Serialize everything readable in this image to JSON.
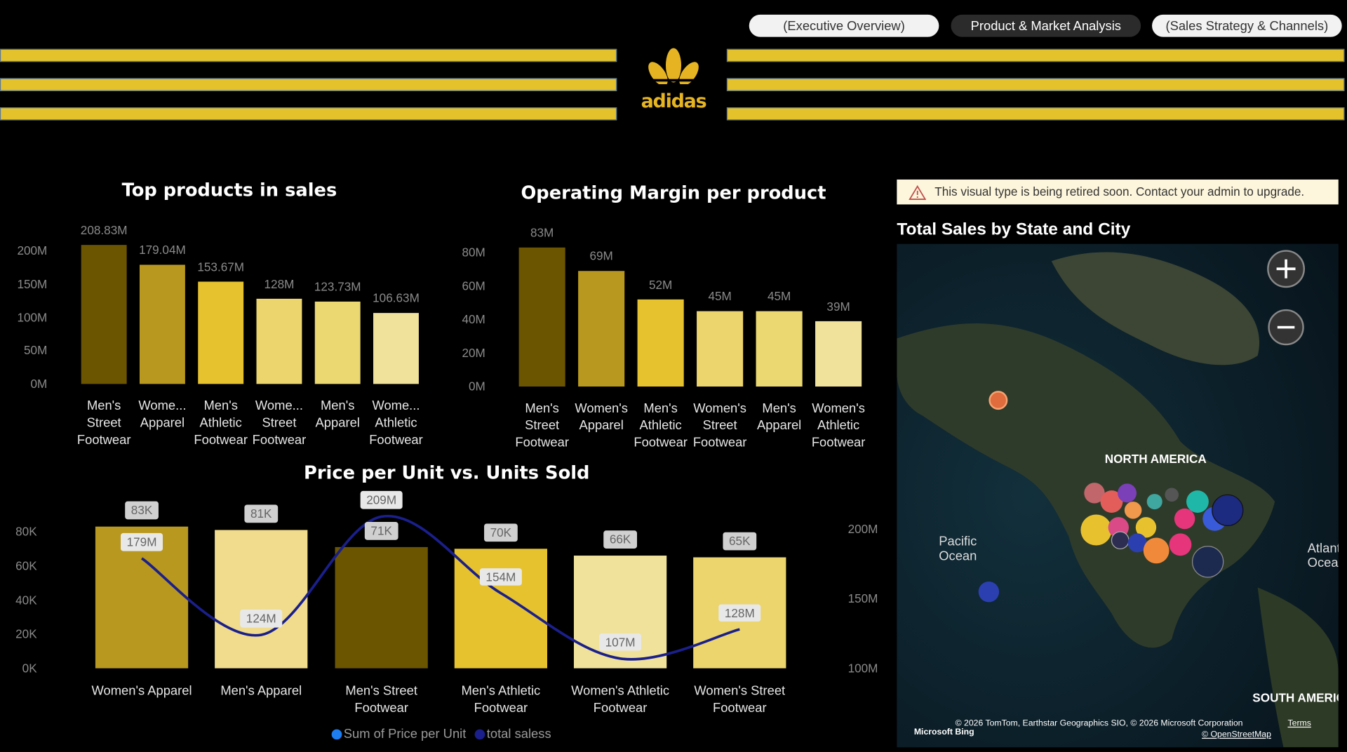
{
  "nav": [
    "(Executive Overview)",
    "Product & Market Analysis",
    "(Sales Strategy & Channels)"
  ],
  "logo": "adidas",
  "warning": "This visual type is being retired soon. Contact your admin to upgrade.",
  "map": {
    "title": "Total Sales by State and City",
    "labels": [
      "NORTH AMERICA",
      "Pacific Ocean",
      "Atlantic Ocean",
      "SOUTH AMERICA"
    ],
    "brand": "Microsoft Bing",
    "copyright": "© 2026 TomTom, Earthstar Geographics SIO, © 2026 Microsoft Corporation",
    "terms": "Terms",
    "osm": "© OpenStreetMap"
  },
  "chart_data": [
    {
      "type": "bar",
      "title": "Top products in sales",
      "categories": [
        "Men's Street Footwear",
        "Wome... Apparel",
        "Men's Athletic Footwear",
        "Wome... Street Footwear",
        "Men's Apparel",
        "Wome... Athletic Footwear"
      ],
      "values": [
        208.83,
        179.04,
        153.67,
        128,
        123.73,
        106.63
      ],
      "value_labels": [
        "208.83M",
        "179.04M",
        "153.67M",
        "128M",
        "123.73M",
        "106.63M"
      ],
      "colors": [
        "#6b5500",
        "#b8981e",
        "#e6c22e",
        "#ecd56c",
        "#ecd870",
        "#f0e29a"
      ],
      "ylim": [
        0,
        200
      ],
      "yticks": [
        {
          "value": 0,
          "label": "0M"
        },
        {
          "value": 50,
          "label": "50M"
        },
        {
          "value": 100,
          "label": "100M"
        },
        {
          "value": 150,
          "label": "150M"
        },
        {
          "value": 200,
          "label": "200M"
        }
      ]
    },
    {
      "type": "bar",
      "title": "Operating Margin per product",
      "categories": [
        "Men's Street Footwear",
        "Women's Apparel",
        "Men's Athletic Footwear",
        "Women's Street Footwear",
        "Men's Apparel",
        "Women's Athletic Footwear"
      ],
      "values": [
        83,
        69,
        52,
        45,
        45,
        39
      ],
      "value_labels": [
        "83M",
        "69M",
        "52M",
        "45M",
        "45M",
        "39M"
      ],
      "colors": [
        "#6b5500",
        "#b8981e",
        "#e6c22e",
        "#ecd56c",
        "#ecd870",
        "#f0e29a"
      ],
      "ylim": [
        0,
        80
      ],
      "yticks": [
        {
          "value": 0,
          "label": "0M"
        },
        {
          "value": 20,
          "label": "20M"
        },
        {
          "value": 40,
          "label": "40M"
        },
        {
          "value": 60,
          "label": "60M"
        },
        {
          "value": 80,
          "label": "80M"
        }
      ]
    },
    {
      "type": "combo",
      "title": "Price per Unit vs. Units Sold",
      "categories": [
        "Women's Apparel",
        "Men's Apparel",
        "Men's Street Footwear",
        "Men's Athletic Footwear",
        "Women's Athletic Footwear",
        "Women's Street Footwear"
      ],
      "series": [
        {
          "name": "Sum of Price per Unit",
          "type": "bar",
          "color": "#1e7ef0",
          "colors": [
            "#b8981e",
            "#f0dc8c",
            "#6b5500",
            "#e6c22e",
            "#f0e29a",
            "#ecd56c"
          ],
          "values": [
            83,
            81,
            71,
            70,
            66,
            65
          ],
          "value_labels": [
            "83K",
            "81K",
            "71K",
            "70K",
            "66K",
            "65K"
          ]
        },
        {
          "name": "total saless",
          "type": "line",
          "axis": "y2",
          "color": "#1a1f8c",
          "values": [
            179,
            124,
            209,
            154,
            107,
            128
          ],
          "value_labels": [
            "179M",
            "124M",
            "209M",
            "154M",
            "107M",
            "128M"
          ]
        }
      ],
      "ylim": [
        0,
        80
      ],
      "yticks": [
        {
          "value": 0,
          "label": "0K"
        },
        {
          "value": 20,
          "label": "20K"
        },
        {
          "value": 40,
          "label": "40K"
        },
        {
          "value": 60,
          "label": "60K"
        },
        {
          "value": 80,
          "label": "80K"
        }
      ],
      "y2lim": [
        100,
        200
      ],
      "y2ticks": [
        {
          "value": 100,
          "label": "100M"
        },
        {
          "value": 150,
          "label": "150M"
        },
        {
          "value": 200,
          "label": "200M"
        }
      ]
    }
  ]
}
